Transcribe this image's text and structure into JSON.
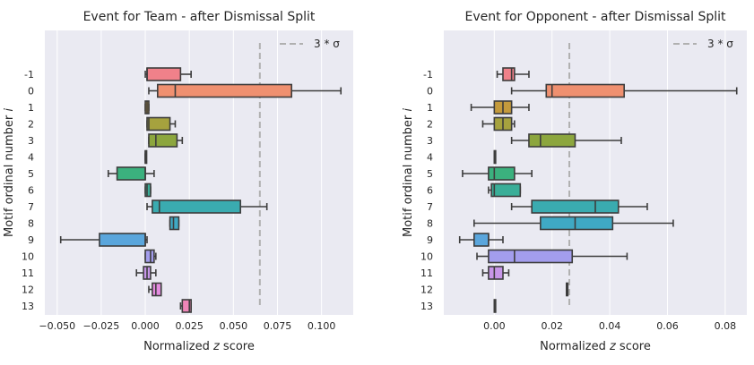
{
  "chart_data": [
    {
      "type": "box",
      "title": "Event for Team  - after Dismissal Split",
      "xlabel": "Normalized z score",
      "ylabel": "Motif ordinal number i",
      "xlim": [
        -0.057,
        0.118
      ],
      "xticks": [
        -0.05,
        -0.025,
        0.0,
        0.025,
        0.05,
        0.075,
        0.1
      ],
      "xtick_labels": [
        "−0.050",
        "−0.025",
        "0.000",
        "0.025",
        "0.050",
        "0.075",
        "0.100"
      ],
      "grid": true,
      "legend": {
        "label": "3 * σ",
        "placement": "top-right"
      },
      "threshold_line": {
        "value": 0.065,
        "style": "dashed",
        "color": "#b0b0b0"
      },
      "categories": [
        "-1",
        "0",
        "1",
        "2",
        "3",
        "4",
        "5",
        "6",
        "7",
        "8",
        "9",
        "10",
        "11",
        "12",
        "13"
      ],
      "boxes": [
        {
          "category": "-1",
          "whisker_low": 0.0,
          "q1": 0.001,
          "median": 0.001,
          "q3": 0.02,
          "whisker_high": 0.026,
          "color": "#f0818a"
        },
        {
          "category": "0",
          "whisker_low": 0.002,
          "q1": 0.007,
          "median": 0.017,
          "q3": 0.083,
          "whisker_high": 0.111,
          "color": "#ef9070"
        },
        {
          "category": "1",
          "whisker_low": 0.0,
          "q1": 0.0,
          "median": 0.001,
          "q3": 0.002,
          "whisker_high": 0.002,
          "color": "#c49a3c"
        },
        {
          "category": "2",
          "whisker_low": 0.001,
          "q1": 0.001,
          "median": 0.002,
          "q3": 0.014,
          "whisker_high": 0.017,
          "color": "#a6a23e"
        },
        {
          "category": "3",
          "whisker_low": 0.002,
          "q1": 0.002,
          "median": 0.006,
          "q3": 0.018,
          "whisker_high": 0.021,
          "color": "#8ca63e"
        },
        {
          "category": "4",
          "whisker_low": 0.0,
          "q1": 0.0,
          "median": 0.0,
          "q3": 0.0,
          "whisker_high": 0.0,
          "color": "#52b04a"
        },
        {
          "category": "5",
          "whisker_low": -0.021,
          "q1": -0.016,
          "median": 0.0,
          "q3": 0.0,
          "whisker_high": 0.005,
          "color": "#3bb17e"
        },
        {
          "category": "6",
          "whisker_low": 0.0,
          "q1": 0.0,
          "median": 0.001,
          "q3": 0.003,
          "whisker_high": 0.003,
          "color": "#3aae98"
        },
        {
          "category": "7",
          "whisker_low": 0.001,
          "q1": 0.004,
          "median": 0.008,
          "q3": 0.054,
          "whisker_high": 0.069,
          "color": "#3aabb0"
        },
        {
          "category": "8",
          "whisker_low": 0.014,
          "q1": 0.014,
          "median": 0.016,
          "q3": 0.019,
          "whisker_high": 0.019,
          "color": "#3fa9c4"
        },
        {
          "category": "9",
          "whisker_low": -0.048,
          "q1": -0.026,
          "median": 0.0,
          "q3": 0.0,
          "whisker_high": 0.001,
          "color": "#5aa6dc"
        },
        {
          "category": "10",
          "whisker_low": 0.0,
          "q1": 0.0,
          "median": 0.003,
          "q3": 0.005,
          "whisker_high": 0.006,
          "color": "#a39ded"
        },
        {
          "category": "11",
          "whisker_low": -0.005,
          "q1": -0.001,
          "median": 0.001,
          "q3": 0.003,
          "whisker_high": 0.006,
          "color": "#c796e8"
        },
        {
          "category": "12",
          "whisker_low": 0.002,
          "q1": 0.004,
          "median": 0.006,
          "q3": 0.009,
          "whisker_high": 0.009,
          "color": "#e58ce0"
        },
        {
          "category": "13",
          "whisker_low": 0.02,
          "q1": 0.021,
          "median": 0.025,
          "q3": 0.026,
          "whisker_high": 0.026,
          "color": "#ee86b8"
        }
      ]
    },
    {
      "type": "box",
      "title": "Event for Opponent - after Dismissal Split",
      "xlabel": "Normalized z score",
      "ylabel": "Motif ordinal number i",
      "xlim": [
        -0.0175,
        0.0875
      ],
      "xticks": [
        0.0,
        0.02,
        0.04,
        0.06,
        0.08
      ],
      "xtick_labels": [
        "0.00",
        "0.02",
        "0.04",
        "0.06",
        "0.08"
      ],
      "grid": true,
      "legend": {
        "label": "3 * σ",
        "placement": "top-right"
      },
      "threshold_line": {
        "value": 0.026,
        "style": "dashed",
        "color": "#b0b0b0"
      },
      "categories": [
        "-1",
        "0",
        "1",
        "2",
        "3",
        "4",
        "5",
        "6",
        "7",
        "8",
        "9",
        "10",
        "11",
        "12",
        "13"
      ],
      "boxes": [
        {
          "category": "-1",
          "whisker_low": 0.001,
          "q1": 0.003,
          "median": 0.006,
          "q3": 0.007,
          "whisker_high": 0.012,
          "color": "#f0818a"
        },
        {
          "category": "0",
          "whisker_low": 0.006,
          "q1": 0.018,
          "median": 0.02,
          "q3": 0.045,
          "whisker_high": 0.084,
          "color": "#ef9070"
        },
        {
          "category": "1",
          "whisker_low": -0.008,
          "q1": 0.0,
          "median": 0.003,
          "q3": 0.006,
          "whisker_high": 0.012,
          "color": "#c49a3c"
        },
        {
          "category": "2",
          "whisker_low": -0.004,
          "q1": 0.0,
          "median": 0.003,
          "q3": 0.006,
          "whisker_high": 0.007,
          "color": "#a6a23e"
        },
        {
          "category": "3",
          "whisker_low": 0.006,
          "q1": 0.012,
          "median": 0.016,
          "q3": 0.028,
          "whisker_high": 0.044,
          "color": "#8ca63e"
        },
        {
          "category": "4",
          "whisker_low": 0.0,
          "q1": 0.0,
          "median": 0.0,
          "q3": 0.0,
          "whisker_high": 0.0,
          "color": "#52b04a"
        },
        {
          "category": "5",
          "whisker_low": -0.011,
          "q1": -0.002,
          "median": 0.0,
          "q3": 0.007,
          "whisker_high": 0.013,
          "color": "#3bb17e"
        },
        {
          "category": "6",
          "whisker_low": -0.002,
          "q1": -0.001,
          "median": 0.0,
          "q3": 0.009,
          "whisker_high": 0.009,
          "color": "#3aae98"
        },
        {
          "category": "7",
          "whisker_low": 0.006,
          "q1": 0.013,
          "median": 0.035,
          "q3": 0.043,
          "whisker_high": 0.053,
          "color": "#3aabb0"
        },
        {
          "category": "8",
          "whisker_low": -0.007,
          "q1": 0.016,
          "median": 0.028,
          "q3": 0.041,
          "whisker_high": 0.062,
          "color": "#3fa9c4"
        },
        {
          "category": "9",
          "whisker_low": -0.012,
          "q1": -0.007,
          "median": -0.002,
          "q3": -0.002,
          "whisker_high": 0.003,
          "color": "#5aa6dc"
        },
        {
          "category": "10",
          "whisker_low": -0.006,
          "q1": -0.002,
          "median": 0.007,
          "q3": 0.027,
          "whisker_high": 0.046,
          "color": "#a39ded"
        },
        {
          "category": "11",
          "whisker_low": -0.004,
          "q1": -0.002,
          "median": 0.0,
          "q3": 0.003,
          "whisker_high": 0.005,
          "color": "#c796e8"
        },
        {
          "category": "12",
          "whisker_low": 0.025,
          "q1": 0.025,
          "median": 0.025,
          "q3": 0.025,
          "whisker_high": 0.025,
          "color": "#e58ce0"
        },
        {
          "category": "13",
          "whisker_low": 0.0,
          "q1": 0.0,
          "median": 0.0,
          "q3": 0.0,
          "whisker_high": 0.0,
          "color": "#ee86b8"
        }
      ]
    }
  ]
}
